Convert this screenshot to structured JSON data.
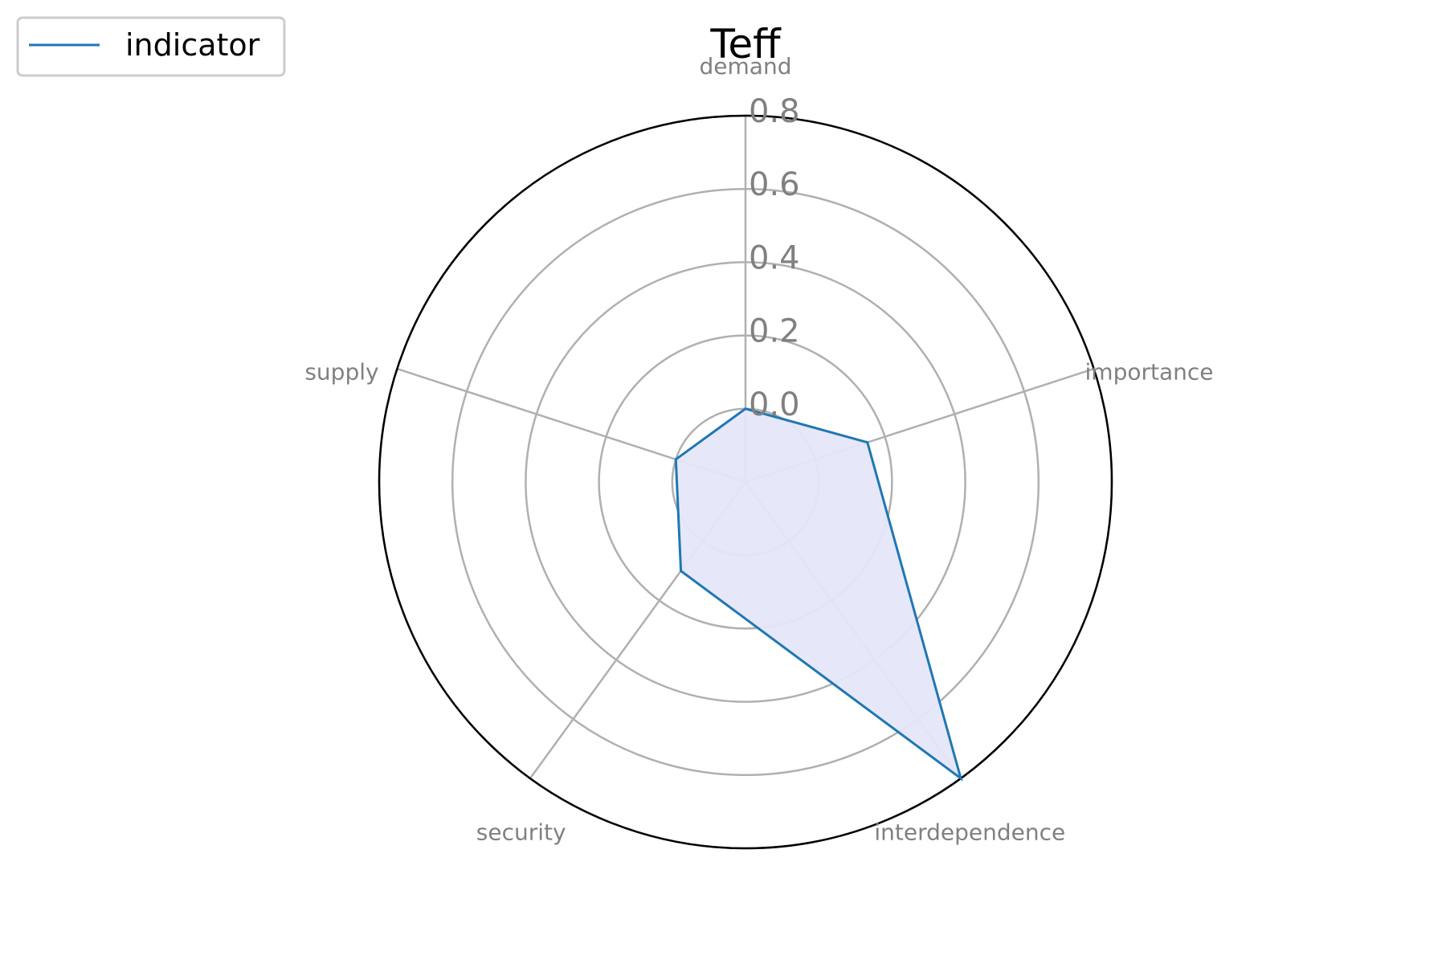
{
  "chart_data": {
    "type": "radar",
    "title": "Teff",
    "categories": [
      "demand",
      "importance",
      "interdependence",
      "security",
      "supply"
    ],
    "series": [
      {
        "name": "indicator",
        "values": [
          0.0,
          0.15,
          0.8,
          0.1,
          0.0
        ],
        "line_color": "#1f77b4",
        "fill_color": "#e6e6fa"
      }
    ],
    "r_ticks": [
      0.0,
      0.2,
      0.4,
      0.6,
      0.8
    ],
    "r_tick_labels": [
      "0.0",
      "0.2",
      "0.4",
      "0.6",
      "0.8"
    ],
    "rlim": [
      -0.2,
      0.8
    ],
    "grid": true,
    "legend_position": "top-left"
  }
}
